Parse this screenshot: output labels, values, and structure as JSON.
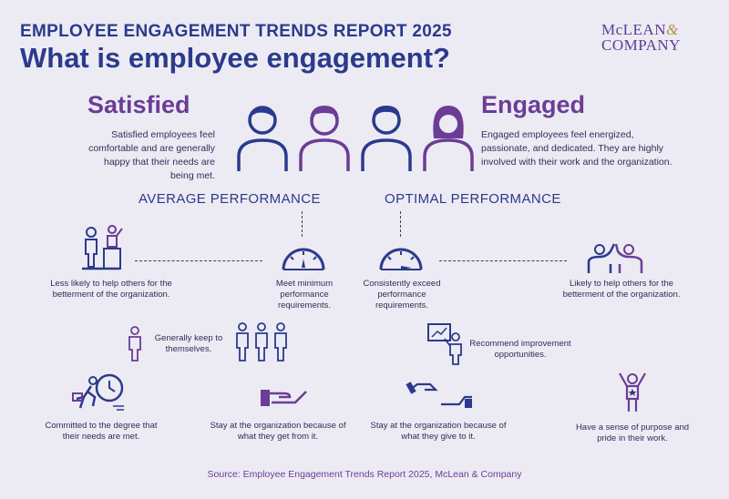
{
  "header": {
    "report_title": "EMPLOYEE ENGAGEMENT TRENDS REPORT 2025",
    "main_heading": "What is employee engagement?",
    "logo_line1": "McLEAN",
    "logo_amp": "&",
    "logo_line2": "COMPANY"
  },
  "satisfied": {
    "title": "Satisfied",
    "description": "Satisfied employees feel comfortable and are generally happy that their needs are being met."
  },
  "engaged": {
    "title": "Engaged",
    "description": "Engaged employees feel energized, passionate, and dedicated. They are highly involved with their work and the organization."
  },
  "performance": {
    "average_label": "AVERAGE PERFORMANCE",
    "optimal_label": "OPTIMAL PERFORMANCE"
  },
  "items": {
    "less_likely_help": "Less likely to help others for the betterment of the organization.",
    "meet_minimum": "Meet minimum performance requirements.",
    "consistently_exceed": "Consistently exceed performance requirements.",
    "likely_help": "Likely to help others for the betterment of the organization.",
    "keep_to_themselves": "Generally keep to themselves.",
    "recommend_improvement": "Recommend improvement opportunities.",
    "committed_degree": "Committed to the degree that their needs are met.",
    "stay_get": "Stay at the organization because of what they get from it.",
    "stay_give": "Stay at the organization because of what they give to it.",
    "sense_purpose": "Have a sense of purpose and pride in their work."
  },
  "colors": {
    "navy": "#2b3a8c",
    "purple": "#6b3d96",
    "background": "#ecebf3"
  },
  "footer": {
    "source": "Source: Employee Engagement Trends Report 2025, McLean & Company"
  }
}
